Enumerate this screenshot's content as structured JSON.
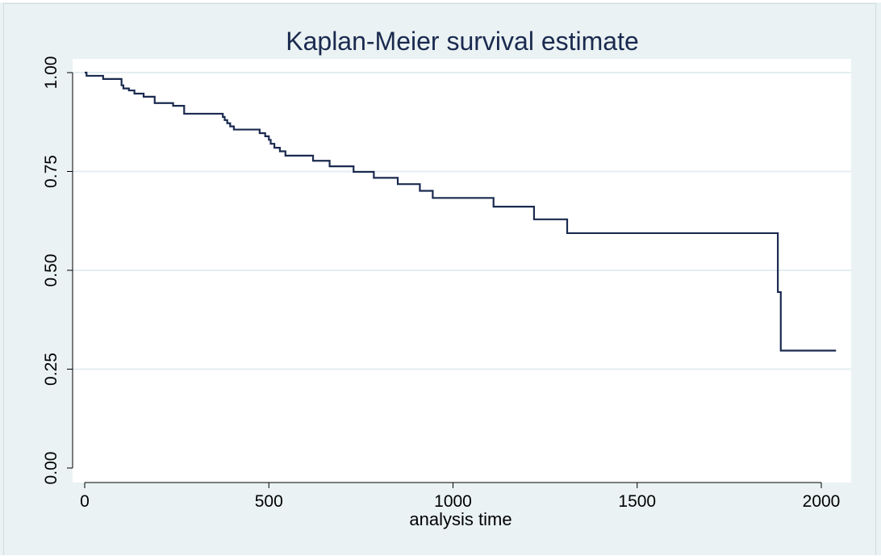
{
  "chart_data": {
    "type": "line",
    "title": "Kaplan-Meier survival estimate",
    "xlabel": "analysis time",
    "ylabel": "",
    "xlim": [
      0,
      2050
    ],
    "ylim": [
      0,
      1
    ],
    "x_ticks": [
      "0",
      "500",
      "1000",
      "1500",
      "2000"
    ],
    "y_ticks": [
      "0.00",
      "0.25",
      "0.50",
      "0.75",
      "1.00"
    ],
    "x_tick_values": [
      0,
      500,
      1000,
      1500,
      2000
    ],
    "y_tick_values": [
      0,
      0.25,
      0.5,
      0.75,
      1.0
    ],
    "grid": true,
    "colors": {
      "line": "#1a2a4f",
      "grid": "#ffffff",
      "plot_bg": "#ffffff"
    },
    "series": [
      {
        "step": "post",
        "x": [
          0,
          5,
          50,
          100,
          105,
          120,
          135,
          160,
          190,
          240,
          270,
          375,
          380,
          387,
          395,
          405,
          475,
          490,
          500,
          505,
          515,
          530,
          545,
          620,
          665,
          730,
          785,
          850,
          910,
          945,
          1110,
          1220,
          1310,
          1882,
          1885,
          1890,
          2040
        ],
        "y": [
          1.0,
          0.992,
          0.984,
          0.968,
          0.96,
          0.955,
          0.947,
          0.939,
          0.923,
          0.916,
          0.896,
          0.888,
          0.88,
          0.872,
          0.864,
          0.856,
          0.847,
          0.839,
          0.83,
          0.82,
          0.81,
          0.801,
          0.79,
          0.777,
          0.763,
          0.749,
          0.734,
          0.718,
          0.701,
          0.683,
          0.661,
          0.629,
          0.594,
          0.445,
          0.445,
          0.297,
          0.297
        ]
      }
    ]
  }
}
